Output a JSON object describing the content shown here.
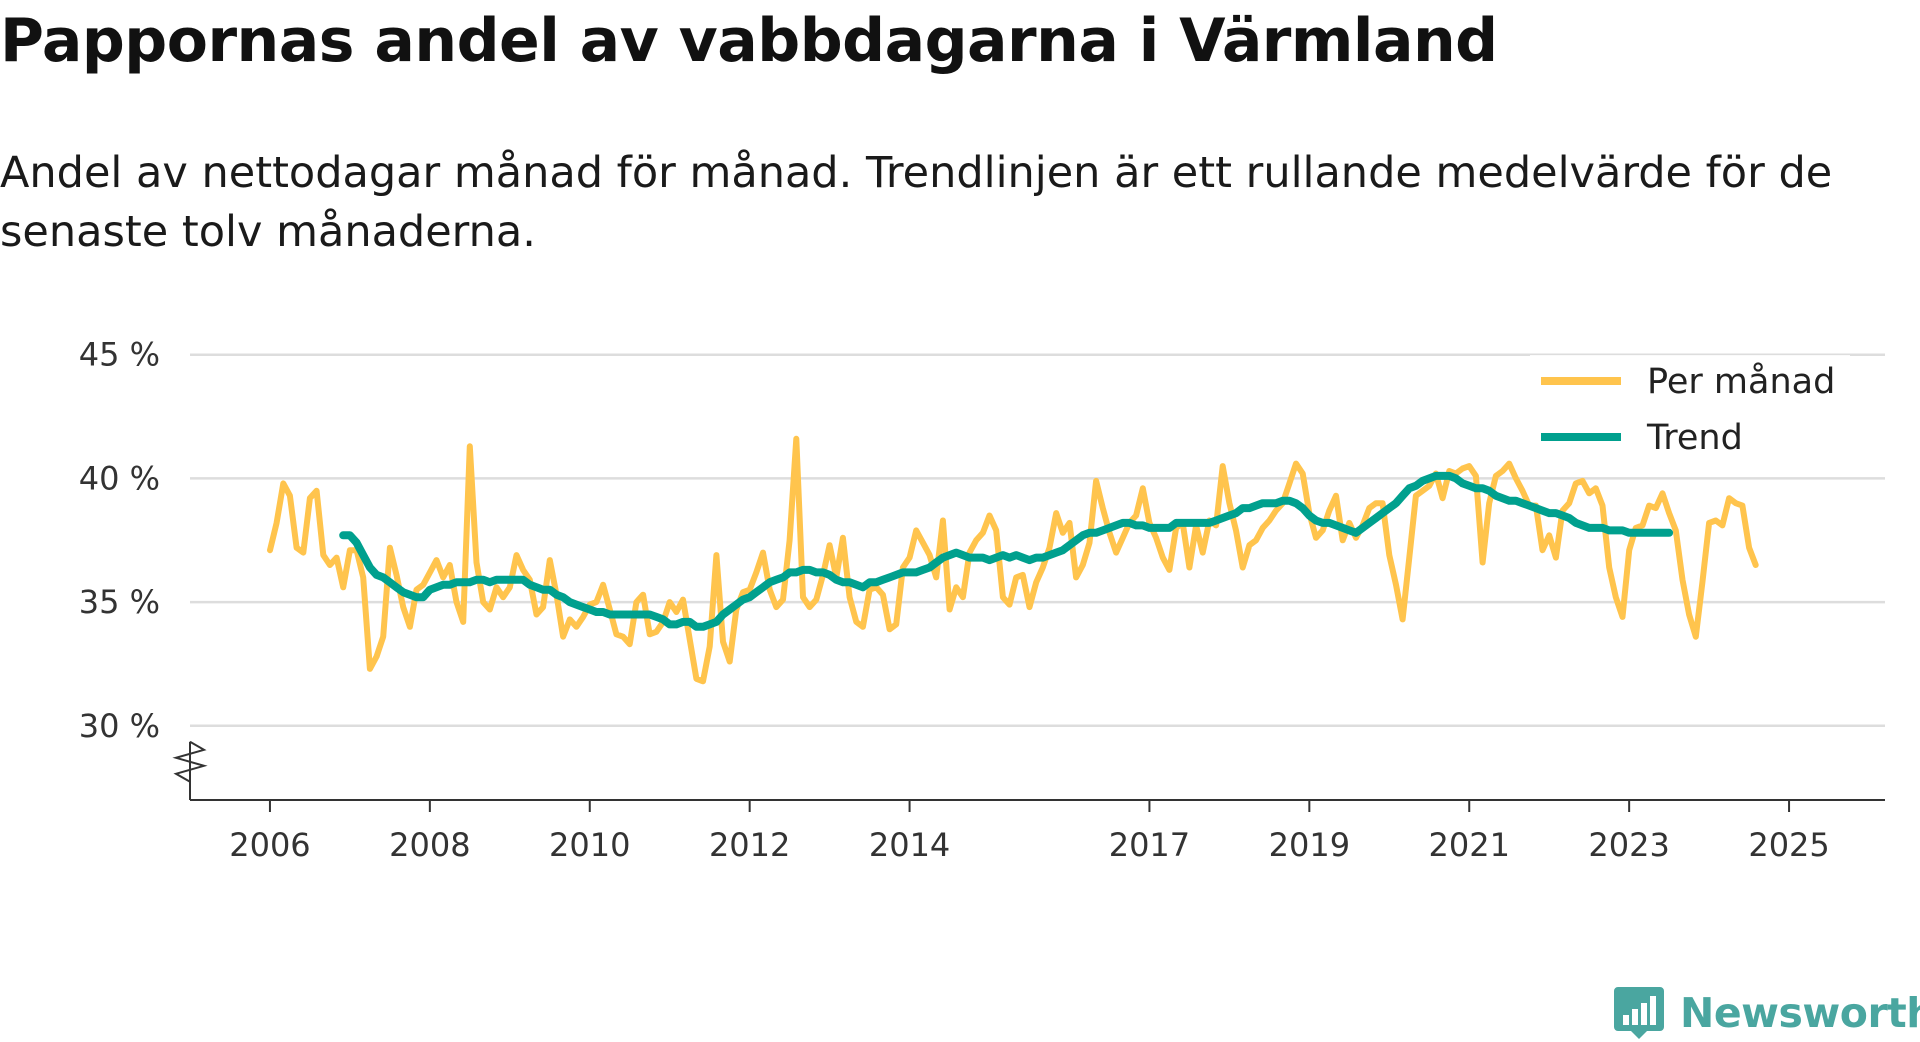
{
  "title": "Pappornas andel av vabbdagarna i Värmland",
  "subtitle": "Andel av nettodagar månad för månad. Trendlinjen är ett rullande medelvärde för de senaste tolv månaderna.",
  "brand": {
    "name": "Newsworthy",
    "icon": "bar-chart-icon",
    "color": "#4aa6a0"
  },
  "colors": {
    "monthly": "#ffc44d",
    "trend": "#00a08e",
    "grid": "#dddddd",
    "axis": "#333333"
  },
  "chart_data": {
    "type": "line",
    "title": "Pappornas andel av vabbdagarna i Värmland",
    "xlabel": "",
    "ylabel": "",
    "ylim": [
      27,
      46
    ],
    "xlim": [
      2005,
      2026.2
    ],
    "yticks": [
      30,
      35,
      40,
      45
    ],
    "ytick_labels": [
      "30 %",
      "35 %",
      "40 %",
      "45 %"
    ],
    "xticks": [
      2006,
      2008,
      2010,
      2012,
      2014,
      2017,
      2019,
      2021,
      2023,
      2025
    ],
    "xtick_labels": [
      "2006",
      "2008",
      "2010",
      "2012",
      "2014",
      "2017",
      "2019",
      "2021",
      "2023",
      "2025"
    ],
    "axis_break": true,
    "grid": true,
    "legend_position": "top-right",
    "series": [
      {
        "name": "Per månad",
        "x_start": 2006.0,
        "x_step": 0.08333333,
        "values": [
          37.1,
          38.2,
          39.8,
          39.3,
          37.2,
          37.0,
          39.2,
          39.5,
          36.9,
          36.5,
          36.8,
          35.6,
          37.1,
          37.1,
          36.0,
          32.3,
          32.8,
          33.6,
          37.2,
          36.1,
          34.8,
          34.0,
          35.5,
          35.7,
          36.2,
          36.7,
          36.0,
          36.5,
          35.0,
          34.2,
          41.3,
          36.6,
          35.0,
          34.7,
          35.6,
          35.2,
          35.6,
          36.9,
          36.3,
          35.9,
          34.5,
          34.8,
          36.7,
          35.3,
          33.6,
          34.3,
          34.0,
          34.4,
          34.9,
          35.0,
          35.7,
          34.7,
          33.7,
          33.6,
          33.3,
          35.0,
          35.3,
          33.7,
          33.8,
          34.2,
          35.0,
          34.6,
          35.1,
          33.5,
          31.9,
          31.8,
          33.2,
          36.9,
          33.4,
          32.6,
          34.7,
          35.4,
          35.5,
          36.2,
          37.0,
          35.5,
          34.8,
          35.1,
          37.5,
          41.6,
          35.2,
          34.8,
          35.1,
          36.1,
          37.3,
          36.0,
          37.6,
          35.2,
          34.2,
          34.0,
          35.5,
          35.6,
          35.3,
          33.9,
          34.1,
          36.4,
          36.8,
          37.9,
          37.4,
          36.9,
          36.0,
          38.3,
          34.7,
          35.6,
          35.2,
          37.0,
          37.5,
          37.8,
          38.5,
          37.9,
          35.2,
          34.9,
          36.0,
          36.1,
          34.8,
          35.8,
          36.4,
          37.2,
          38.6,
          37.8,
          38.2,
          36.0,
          36.5,
          37.4,
          39.9,
          38.8,
          37.8,
          37.0,
          37.6,
          38.2,
          38.5,
          39.6,
          38.2,
          37.6,
          36.8,
          36.3,
          38.0,
          38.2,
          36.4,
          38.1,
          37.0,
          38.3,
          38.1,
          40.5,
          39.0,
          37.9,
          36.4,
          37.3,
          37.5,
          38.0,
          38.3,
          38.7,
          39.0,
          39.8,
          40.6,
          40.2,
          38.6,
          37.6,
          37.9,
          38.7,
          39.3,
          37.5,
          38.2,
          37.6,
          38.1,
          38.8,
          39.0,
          39.0,
          36.9,
          35.7,
          34.3,
          36.8,
          39.3,
          39.5,
          39.7,
          40.2,
          39.2,
          40.3,
          40.2,
          40.4,
          40.5,
          40.1,
          36.6,
          39.0,
          40.1,
          40.3,
          40.6,
          40.0,
          39.5,
          38.9,
          38.9,
          37.1,
          37.7,
          36.8,
          38.7,
          39.0,
          39.8,
          39.9,
          39.4,
          39.6,
          38.9,
          36.4,
          35.2,
          34.4,
          37.1,
          38.0,
          38.1,
          38.9,
          38.8,
          39.4,
          38.6,
          37.9,
          35.9,
          34.5,
          33.6,
          35.8,
          38.2,
          38.3,
          38.1,
          39.2,
          39.0,
          38.9,
          37.2,
          36.5
        ],
        "color": "#ffc44d"
      },
      {
        "name": "Trend",
        "x_start": 2006.9167,
        "x_step": 0.08333333,
        "values": [
          37.7,
          37.7,
          37.4,
          36.9,
          36.4,
          36.1,
          36.0,
          35.8,
          35.6,
          35.4,
          35.3,
          35.2,
          35.2,
          35.5,
          35.6,
          35.7,
          35.7,
          35.8,
          35.8,
          35.8,
          35.9,
          35.9,
          35.8,
          35.9,
          35.9,
          35.9,
          35.9,
          35.9,
          35.7,
          35.6,
          35.5,
          35.5,
          35.3,
          35.2,
          35.0,
          34.9,
          34.8,
          34.7,
          34.6,
          34.6,
          34.5,
          34.5,
          34.5,
          34.5,
          34.5,
          34.5,
          34.5,
          34.4,
          34.3,
          34.1,
          34.1,
          34.2,
          34.2,
          34.0,
          34.0,
          34.1,
          34.2,
          34.5,
          34.7,
          34.9,
          35.1,
          35.2,
          35.4,
          35.6,
          35.8,
          35.9,
          36.0,
          36.2,
          36.2,
          36.3,
          36.3,
          36.2,
          36.2,
          36.1,
          35.9,
          35.8,
          35.8,
          35.7,
          35.6,
          35.8,
          35.8,
          35.9,
          36.0,
          36.1,
          36.2,
          36.2,
          36.2,
          36.3,
          36.4,
          36.6,
          36.8,
          36.9,
          37.0,
          36.9,
          36.8,
          36.8,
          36.8,
          36.7,
          36.8,
          36.9,
          36.8,
          36.9,
          36.8,
          36.7,
          36.8,
          36.8,
          36.9,
          37.0,
          37.1,
          37.3,
          37.5,
          37.7,
          37.8,
          37.8,
          37.9,
          38.0,
          38.1,
          38.2,
          38.2,
          38.1,
          38.1,
          38.0,
          38.0,
          38.0,
          38.0,
          38.2,
          38.2,
          38.2,
          38.2,
          38.2,
          38.2,
          38.3,
          38.4,
          38.5,
          38.6,
          38.8,
          38.8,
          38.9,
          39.0,
          39.0,
          39.0,
          39.1,
          39.1,
          39.0,
          38.8,
          38.5,
          38.3,
          38.2,
          38.2,
          38.1,
          38.0,
          37.9,
          37.8,
          38.0,
          38.2,
          38.4,
          38.6,
          38.8,
          39.0,
          39.3,
          39.6,
          39.7,
          39.9,
          40.0,
          40.1,
          40.1,
          40.1,
          40.0,
          39.8,
          39.7,
          39.6,
          39.6,
          39.5,
          39.3,
          39.2,
          39.1,
          39.1,
          39.0,
          38.9,
          38.8,
          38.7,
          38.6,
          38.6,
          38.5,
          38.4,
          38.2,
          38.1,
          38.0,
          38.0,
          38.0,
          37.9,
          37.9,
          37.9,
          37.8,
          37.8,
          37.8,
          37.8,
          37.8,
          37.8,
          37.8
        ],
        "color": "#00a08e"
      }
    ]
  }
}
